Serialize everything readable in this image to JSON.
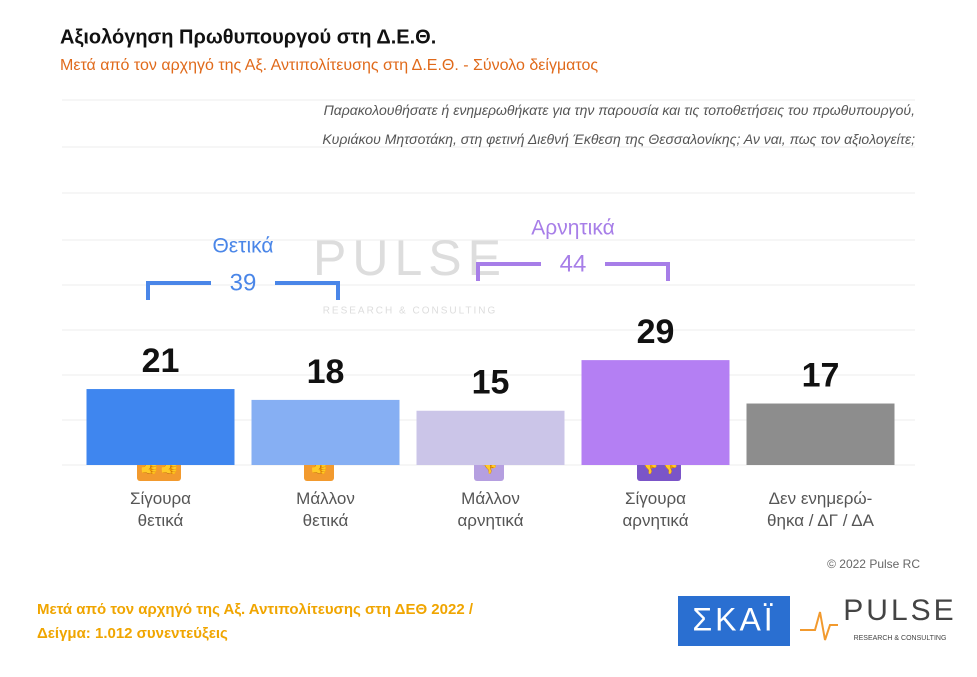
{
  "chart_data": {
    "type": "bar",
    "title": "Αξιολόγηση Πρωθυπουργού στη Δ.Ε.Θ.",
    "subtitle": "Μετά από τον αρχηγό της Αξ. Αντιπολίτευσης στη Δ.Ε.Θ.  -  Σύνολο δείγματος",
    "question": "Παρακολουθήσατε ή ενημερωθήκατε για την παρουσία και τις τοποθετήσεις του πρωθυπουργού,\nΚυριάκου Μητσοτάκη, στη φετινή Διεθνή Έκθεση της Θεσσαλονίκης; Αν ναι, πως τον αξιολογείτε;",
    "categories": [
      "Σίγουρα\nθετικά",
      "Μάλλον\nθετικά",
      "Μάλλον\nαρνητικά",
      "Σίγουρα\nαρνητικά",
      "Δεν ενημερώ-\nθηκα / ΔΓ / ΔΑ"
    ],
    "values": [
      21,
      18,
      15,
      29,
      17
    ],
    "colors": [
      "#3f86ef",
      "#86aff3",
      "#cbc5e8",
      "#b47ff3",
      "#8d8d8d"
    ],
    "ylim": [
      0,
      60
    ],
    "groups": [
      {
        "name": "Θετικά",
        "value": 39,
        "color": "#4a86e8"
      },
      {
        "name": "Αρνητικά",
        "value": 44,
        "color": "#a77ee8"
      }
    ],
    "watermark": "PULSE",
    "watermark_sub": "RESEARCH & CONSULTING",
    "copyright": "© 2022 Pulse RC",
    "footnote": "Μετά από τον αρχηγό της Αξ. Αντιπολίτευσης στη ΔΕΘ  2022  /\nΔείγμα:  1.012 συνεντεύξεις",
    "logo_skai": "ΣΚΑΪ",
    "logo_pulse": "PULSE",
    "logo_pulse_sub": "RESEARCH & CONSULTING"
  }
}
